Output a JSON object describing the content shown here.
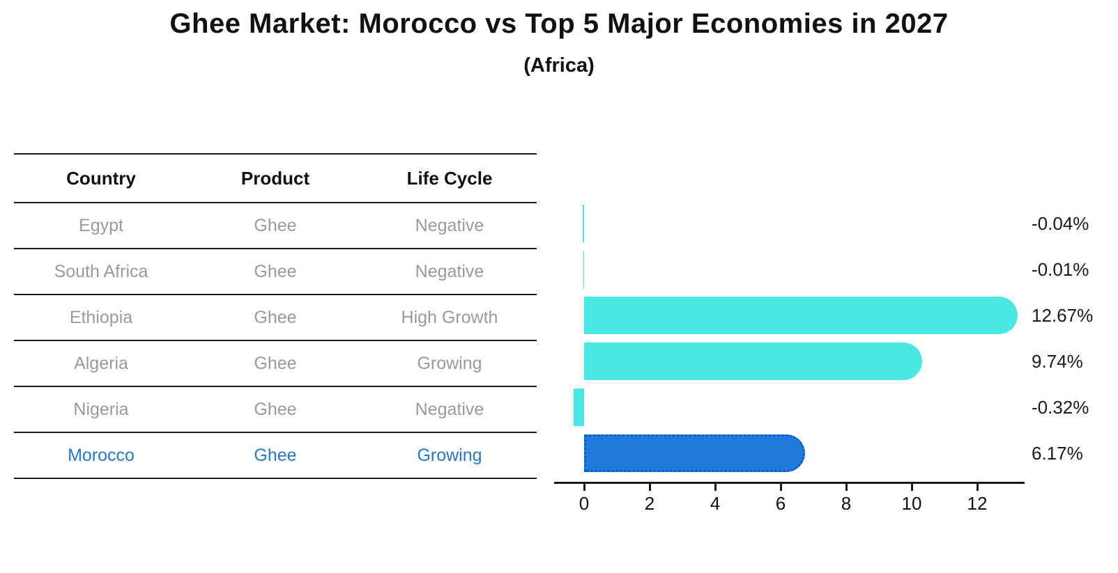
{
  "title": "Ghee Market: Morocco vs Top 5 Major Economies in 2027",
  "subtitle": "(Africa)",
  "table": {
    "headers": [
      "Country",
      "Product",
      "Life Cycle"
    ],
    "rows": [
      {
        "country": "Egypt",
        "product": "Ghee",
        "life_cycle": "Negative",
        "highlight": false
      },
      {
        "country": "South Africa",
        "product": "Ghee",
        "life_cycle": "Negative",
        "highlight": false
      },
      {
        "country": "Ethiopia",
        "product": "Ghee",
        "life_cycle": "High Growth",
        "highlight": false
      },
      {
        "country": "Algeria",
        "product": "Ghee",
        "life_cycle": "Growing",
        "highlight": false
      },
      {
        "country": "Nigeria",
        "product": "Ghee",
        "life_cycle": "Negative",
        "highlight": false
      },
      {
        "country": "Morocco",
        "product": "Ghee",
        "life_cycle": "Growing",
        "highlight": true
      }
    ]
  },
  "chart_data": {
    "type": "bar",
    "orientation": "horizontal",
    "categories": [
      "Egypt",
      "South Africa",
      "Ethiopia",
      "Algeria",
      "Nigeria",
      "Morocco"
    ],
    "values": [
      -0.04,
      -0.01,
      12.67,
      9.74,
      -0.32,
      6.17
    ],
    "value_labels": [
      "-0.04%",
      "-0.01%",
      "12.67%",
      "9.74%",
      "-0.32%",
      "6.17%"
    ],
    "xticks": [
      0,
      2,
      4,
      6,
      8,
      10,
      12
    ],
    "xlim": [
      -1,
      13.4
    ],
    "highlight_index": 5,
    "legend": "none",
    "grid": false,
    "bar_color": "#4be7e3",
    "highlight_color": "#2079db",
    "highlight_border_color": "#0d5ec4"
  },
  "colors": {
    "title_text": "#111111",
    "muted_text": "#9a9a9a",
    "highlight_text": "#2878ce",
    "axis": "#1a1a1a"
  }
}
